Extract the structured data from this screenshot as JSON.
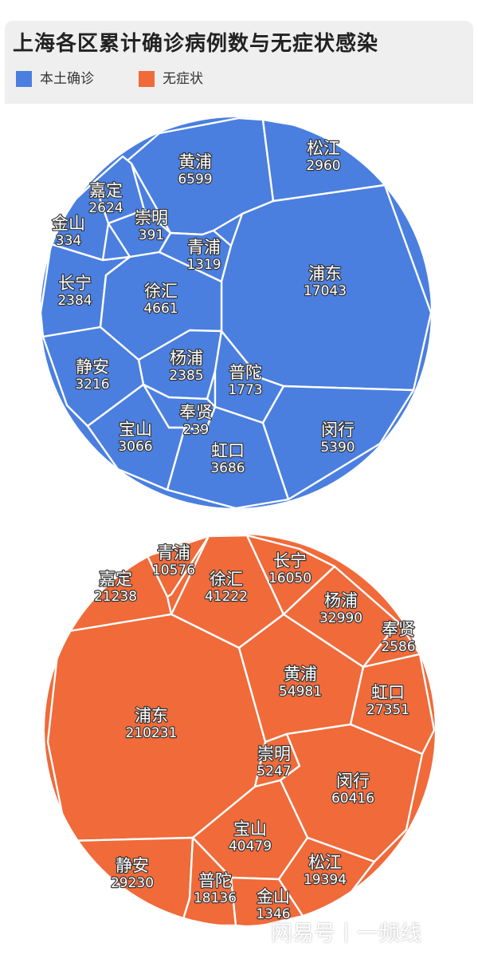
{
  "title": "上海各区累计确诊病例数与无症状感染",
  "legend": {
    "confirmed": {
      "label": "本土确诊",
      "color": "#4a7fe0"
    },
    "asymptomatic": {
      "label": "无症状",
      "color": "#f06a3a"
    }
  },
  "chart_data": [
    {
      "type": "voronoi-treemap",
      "series": "本土确诊",
      "color": "#4a7fe0",
      "cells": [
        {
          "name": "黄浦",
          "value": 6599
        },
        {
          "name": "松江",
          "value": 2960
        },
        {
          "name": "嘉定",
          "value": 2624
        },
        {
          "name": "崇明",
          "value": 391
        },
        {
          "name": "金山",
          "value": 334
        },
        {
          "name": "青浦",
          "value": 1319
        },
        {
          "name": "浦东",
          "value": 17043
        },
        {
          "name": "长宁",
          "value": 2384
        },
        {
          "name": "徐汇",
          "value": 4661
        },
        {
          "name": "杨浦",
          "value": 2385
        },
        {
          "name": "静安",
          "value": 3216
        },
        {
          "name": "普陀",
          "value": 1773
        },
        {
          "name": "奉贤",
          "value": 239
        },
        {
          "name": "宝山",
          "value": 3066
        },
        {
          "name": "闵行",
          "value": 5390
        },
        {
          "name": "虹口",
          "value": 3686
        }
      ]
    },
    {
      "type": "voronoi-treemap",
      "series": "无症状",
      "color": "#f06a3a",
      "cells": [
        {
          "name": "青浦",
          "value": 10576
        },
        {
          "name": "嘉定",
          "value": 21238
        },
        {
          "name": "徐汇",
          "value": 41222
        },
        {
          "name": "长宁",
          "value": 16050
        },
        {
          "name": "杨浦",
          "value": 32990
        },
        {
          "name": "奉贤",
          "value": 2586
        },
        {
          "name": "黄浦",
          "value": 54981
        },
        {
          "name": "虹口",
          "value": 27351
        },
        {
          "name": "浦东",
          "value": 210231
        },
        {
          "name": "崇明",
          "value": 5247
        },
        {
          "name": "闵行",
          "value": 60416
        },
        {
          "name": "宝山",
          "value": 40479
        },
        {
          "name": "松江",
          "value": 19394
        },
        {
          "name": "静安",
          "value": 29230
        },
        {
          "name": "普陀",
          "value": 18136
        },
        {
          "name": "金山",
          "value": 1346
        }
      ]
    }
  ],
  "watermark": "网易号丨一频线"
}
